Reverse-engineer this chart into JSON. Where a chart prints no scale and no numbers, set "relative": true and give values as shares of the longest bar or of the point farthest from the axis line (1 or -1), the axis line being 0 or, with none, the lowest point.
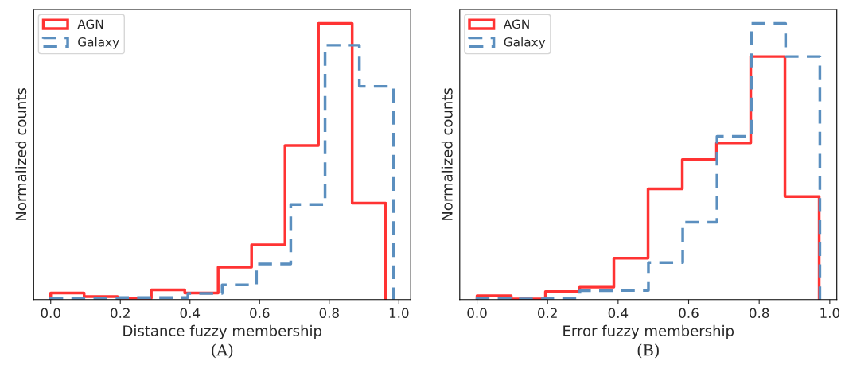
{
  "chart_data": [
    {
      "type": "step",
      "relative": true,
      "xlabel": "Distance fuzzy membership",
      "ylabel": "Normalized counts",
      "xlim": [
        -0.049,
        1.034
      ],
      "xticks": [
        {
          "value": 0,
          "label": "0.0"
        },
        {
          "value": 0.2,
          "label": "0.2"
        },
        {
          "value": 0.4,
          "label": "0.4"
        },
        {
          "value": 0.6,
          "label": "0.6"
        },
        {
          "value": 0.8,
          "label": "0.8"
        },
        {
          "value": 1.0,
          "label": "1.0"
        }
      ],
      "tick_labels": "x",
      "legend": "top left",
      "annotations": [
        "(A)"
      ],
      "series": [
        {
          "name": "AGN",
          "color": "#ff3333",
          "line_style": "solid",
          "x": [
            0,
            0,
            0.096,
            0.192,
            0.289,
            0.385,
            0.481,
            0.577,
            0.673,
            0.769,
            0.866,
            0.962
          ],
          "values": [
            0,
            0.024,
            0.011,
            0.005,
            0.035,
            0.024,
            0.117,
            0.198,
            0.558,
            1.0,
            0.349,
            0
          ]
        },
        {
          "name": "Galaxy",
          "color": "#5b8fbf",
          "line_style": "dashed",
          "x": [
            0,
            0,
            0.0985,
            0.197,
            0.2955,
            0.394,
            0.4925,
            0.591,
            0.6895,
            0.788,
            0.8865,
            0.985
          ],
          "values": [
            0,
            0.005,
            0.005,
            0.007,
            0.007,
            0.022,
            0.053,
            0.129,
            0.344,
            0.921,
            0.772,
            0
          ]
        }
      ]
    },
    {
      "type": "step",
      "relative": true,
      "xlabel": "Error fuzzy membership",
      "ylabel": "Normalized counts",
      "xlim": [
        -0.049,
        1.02
      ],
      "xticks": [
        {
          "value": 0,
          "label": "0.0"
        },
        {
          "value": 0.2,
          "label": "0.2"
        },
        {
          "value": 0.4,
          "label": "0.4"
        },
        {
          "value": 0.6,
          "label": "0.6"
        },
        {
          "value": 0.8,
          "label": "0.8"
        },
        {
          "value": 1.0,
          "label": "1.0"
        }
      ],
      "tick_labels": "x",
      "legend": "top left",
      "annotations": [
        "(B)"
      ],
      "series": [
        {
          "name": "AGN",
          "color": "#ff3333",
          "line_style": "solid",
          "x": [
            0,
            0,
            0.097,
            0.194,
            0.291,
            0.388,
            0.485,
            0.582,
            0.679,
            0.776,
            0.873,
            0.97
          ],
          "values": [
            0,
            0.014,
            0.002,
            0.029,
            0.045,
            0.15,
            0.401,
            0.507,
            0.567,
            0.88,
            0.373,
            0
          ]
        },
        {
          "name": "Galaxy",
          "color": "#5b8fbf",
          "line_style": "dashed",
          "x": [
            0,
            0,
            0.0972,
            0.1944,
            0.2916,
            0.3888,
            0.486,
            0.5832,
            0.6804,
            0.7776,
            0.8748,
            0.972
          ],
          "values": [
            0,
            0.005,
            0.002,
            0.005,
            0.032,
            0.033,
            0.134,
            0.28,
            0.591,
            1.0,
            0.88,
            0
          ]
        }
      ]
    }
  ]
}
